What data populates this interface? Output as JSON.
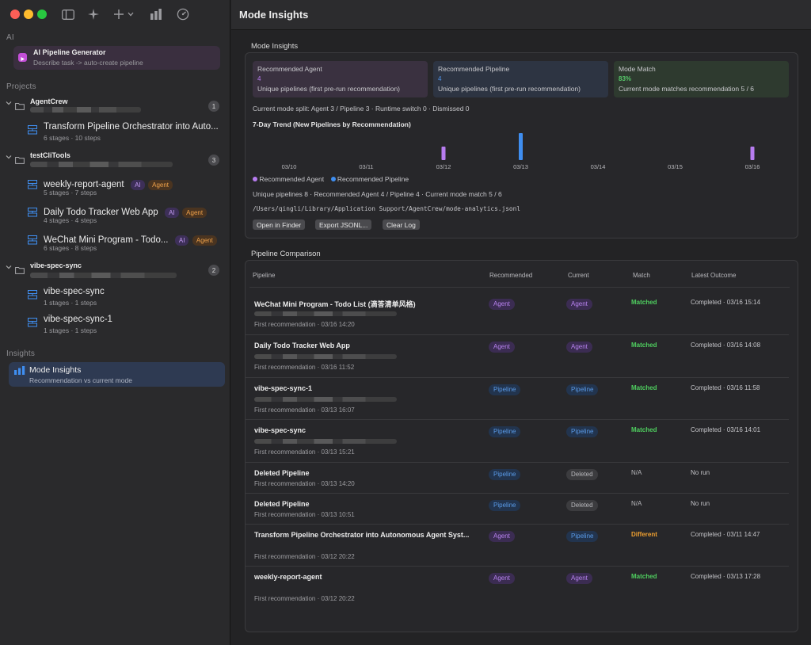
{
  "window": {
    "title": "Mode Insights"
  },
  "sidebar": {
    "ai_section": "AI",
    "generator": {
      "title": "AI Pipeline Generator",
      "subtitle": "Describe task -> auto-create pipeline"
    },
    "projects_section": "Projects",
    "projects": [
      {
        "name": "AgentCrew",
        "count": "1",
        "pipelines": [
          {
            "title": "Transform Pipeline Orchestrator into Auto...",
            "meta": "6 stages · 10 steps",
            "badges": []
          }
        ]
      },
      {
        "name": "testCliTools",
        "count": "3",
        "pipelines": [
          {
            "title": "weekly-report-agent",
            "meta": "5 stages · 7 steps",
            "badges": [
              "AI",
              "Agent"
            ]
          },
          {
            "title": "Daily Todo Tracker Web App",
            "meta": "4 stages · 4 steps",
            "badges": [
              "AI",
              "Agent"
            ]
          },
          {
            "title": "WeChat Mini Program - Todo...",
            "meta": "6 stages · 8 steps",
            "badges": [
              "AI",
              "Agent"
            ]
          }
        ]
      },
      {
        "name": "vibe-spec-sync",
        "count": "2",
        "pipelines": [
          {
            "title": "vibe-spec-sync",
            "meta": "1 stages · 1 steps",
            "badges": []
          },
          {
            "title": "vibe-spec-sync-1",
            "meta": "1 stages · 1 steps",
            "badges": []
          }
        ]
      }
    ],
    "insights_section": "Insights",
    "insights_item": {
      "title": "Mode Insights",
      "subtitle": "Recommendation vs current mode"
    }
  },
  "insights": {
    "panel_title": "Mode Insights",
    "kpis": [
      {
        "title": "Recommended Agent",
        "value": "4",
        "subtitle": "Unique pipelines (first pre-run recommendation)",
        "color": "#b77cf0",
        "bg": "#3a3140"
      },
      {
        "title": "Recommended Pipeline",
        "value": "4",
        "subtitle": "Unique pipelines (first pre-run recommendation)",
        "color": "#4f93e8",
        "bg": "#2d3442"
      },
      {
        "title": "Mode Match",
        "value": "83%",
        "subtitle": "Current mode matches recommendation 5 / 6",
        "color": "#57c96a",
        "bg": "#2e3a2f"
      }
    ],
    "split_text": "Current mode split: Agent 3 / Pipeline 3 · Runtime switch 0 · Dismissed 0",
    "trend_title": "7-Day Trend (New Pipelines by Recommendation)",
    "chart_data": {
      "type": "bar",
      "categories": [
        "03/10",
        "03/11",
        "03/12",
        "03/13",
        "03/14",
        "03/15",
        "03/16"
      ],
      "series": [
        {
          "name": "Recommended Agent",
          "color": "#b77cf0",
          "values": [
            0,
            0,
            1,
            0,
            0,
            0,
            1
          ]
        },
        {
          "name": "Recommended Pipeline",
          "color": "#3f8ef0",
          "values": [
            0,
            0,
            0,
            2,
            0,
            0,
            0
          ]
        }
      ]
    },
    "legend": {
      "agent": "Recommended Agent",
      "pipeline": "Recommended Pipeline"
    },
    "summary_text": "Unique pipelines 8 · Recommended Agent 4 / Pipeline 4 · Current mode match 5 / 6",
    "log_path": "/Users/qingli/Library/Application Support/AgentCrew/mode-analytics.jsonl",
    "buttons": {
      "open": "Open in Finder",
      "export": "Export JSONL...",
      "clear": "Clear Log"
    }
  },
  "comparison": {
    "title": "Pipeline Comparison",
    "headers": {
      "pipeline": "Pipeline",
      "recommended": "Recommended",
      "current": "Current",
      "match": "Match",
      "outcome": "Latest Outcome"
    },
    "rows": [
      {
        "name": "WeChat Mini Program - Todo List (滴答清单风格)",
        "first": "First recommendation · 03/16 14:20",
        "recommended": "Agent",
        "current": "Agent",
        "match": "Matched",
        "outcome": "Completed · 03/16 15:14"
      },
      {
        "name": "Daily Todo Tracker Web App",
        "first": "First recommendation · 03/16 11:52",
        "recommended": "Agent",
        "current": "Agent",
        "match": "Matched",
        "outcome": "Completed · 03/16 14:08"
      },
      {
        "name": "vibe-spec-sync-1",
        "first": "First recommendation · 03/13 16:07",
        "recommended": "Pipeline",
        "current": "Pipeline",
        "match": "Matched",
        "outcome": "Completed · 03/16 11:58"
      },
      {
        "name": "vibe-spec-sync",
        "first": "First recommendation · 03/13 15:21",
        "recommended": "Pipeline",
        "current": "Pipeline",
        "match": "Matched",
        "outcome": "Completed · 03/16 14:01"
      },
      {
        "name": "Deleted Pipeline",
        "first": "First recommendation · 03/13 14:20",
        "recommended": "Pipeline",
        "current": "Deleted",
        "match": "N/A",
        "outcome": "No run"
      },
      {
        "name": "Deleted Pipeline",
        "first": "First recommendation · 03/13 10:51",
        "recommended": "Pipeline",
        "current": "Deleted",
        "match": "N/A",
        "outcome": "No run"
      },
      {
        "name": "Transform Pipeline Orchestrator into Autonomous Agent Syst...",
        "first": "First recommendation · 03/12 20:22",
        "recommended": "Agent",
        "current": "Pipeline",
        "match": "Different",
        "outcome": "Completed · 03/11 14:47"
      },
      {
        "name": "weekly-report-agent",
        "first": "First recommendation · 03/12 20:22",
        "recommended": "Agent",
        "current": "Agent",
        "match": "Matched",
        "outcome": "Completed · 03/13 17:28"
      }
    ]
  },
  "colors": {
    "matched": "#4fcf5f",
    "different": "#f0a030",
    "na": "#b8b8bc"
  }
}
